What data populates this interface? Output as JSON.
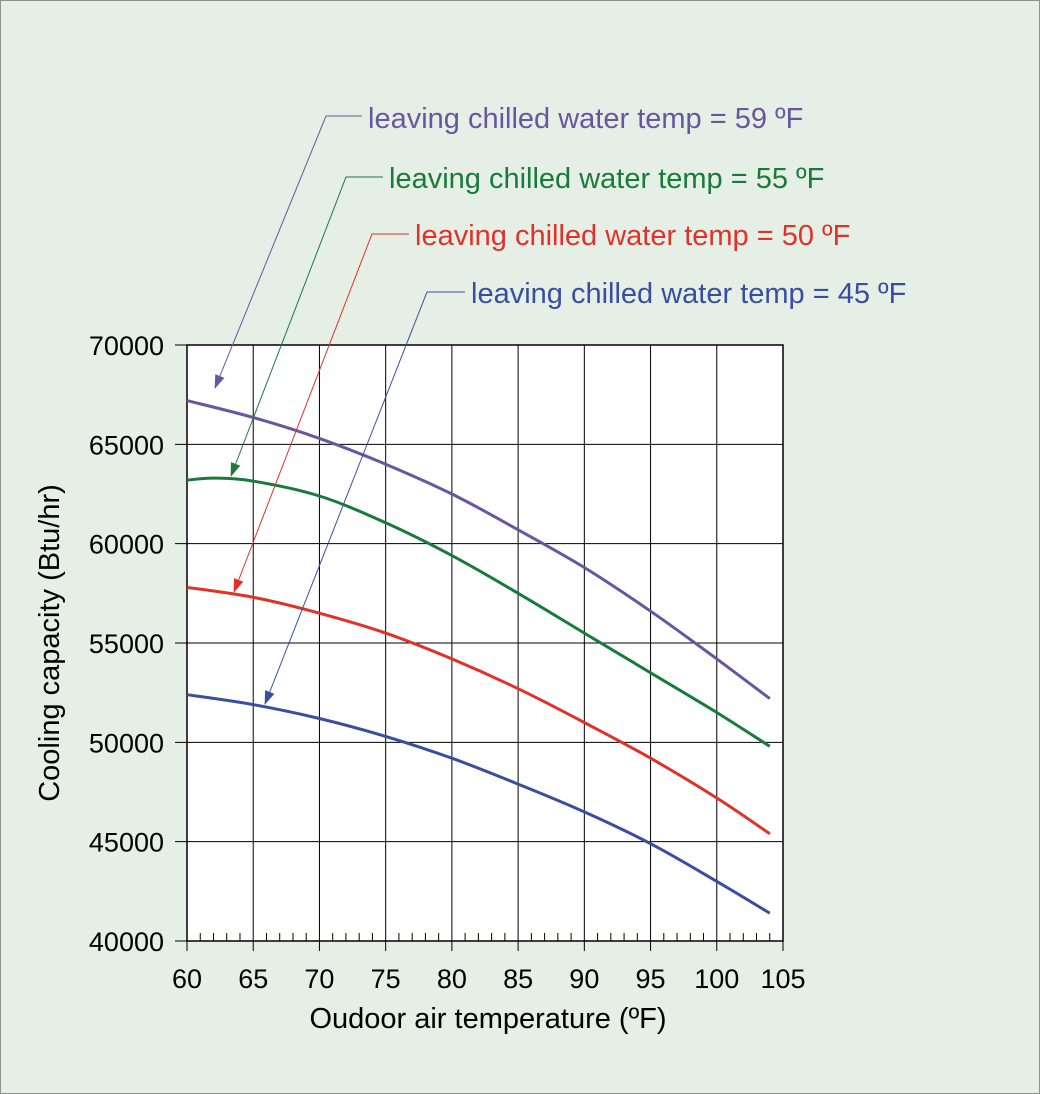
{
  "chart_data": {
    "type": "line",
    "xlabel": "Oudoor air temperature (ºF)",
    "ylabel": "Cooling capacity (Btu/hr)",
    "xlim": [
      60,
      105
    ],
    "ylim": [
      40000,
      70000
    ],
    "xticks": [
      60,
      65,
      70,
      75,
      80,
      85,
      90,
      95,
      100,
      105
    ],
    "yticks": [
      40000,
      45000,
      50000,
      55000,
      60000,
      65000,
      70000
    ],
    "grid": true,
    "series": [
      {
        "name": "leaving chilled water temp = 59 ºF",
        "color": "#6a55a0",
        "x": [
          60,
          65,
          70,
          75,
          80,
          85,
          90,
          95,
          100,
          104
        ],
        "y": [
          67200,
          66350,
          65300,
          64000,
          62500,
          60700,
          58800,
          56600,
          54200,
          52200
        ]
      },
      {
        "name": "leaving chilled water temp = 55 ºF",
        "color": "#1a7a3a",
        "x": [
          60,
          62,
          65,
          70,
          75,
          80,
          85,
          90,
          95,
          100,
          104
        ],
        "y": [
          63200,
          63300,
          63150,
          62400,
          61050,
          59400,
          57500,
          55500,
          53500,
          51500,
          49800
        ]
      },
      {
        "name": "leaving chilled water temp = 50 ºF",
        "color": "#e03228",
        "x": [
          60,
          65,
          70,
          75,
          80,
          85,
          90,
          95,
          100,
          104
        ],
        "y": [
          57800,
          57300,
          56500,
          55500,
          54200,
          52700,
          51000,
          49200,
          47200,
          45400
        ]
      },
      {
        "name": "leaving chilled water temp = 45 ºF",
        "color": "#3a4ea0",
        "x": [
          60,
          65,
          70,
          75,
          80,
          85,
          90,
          95,
          100,
          104
        ],
        "y": [
          52400,
          51900,
          51200,
          50300,
          49200,
          47900,
          46500,
          44900,
          43000,
          41400
        ]
      }
    ]
  }
}
